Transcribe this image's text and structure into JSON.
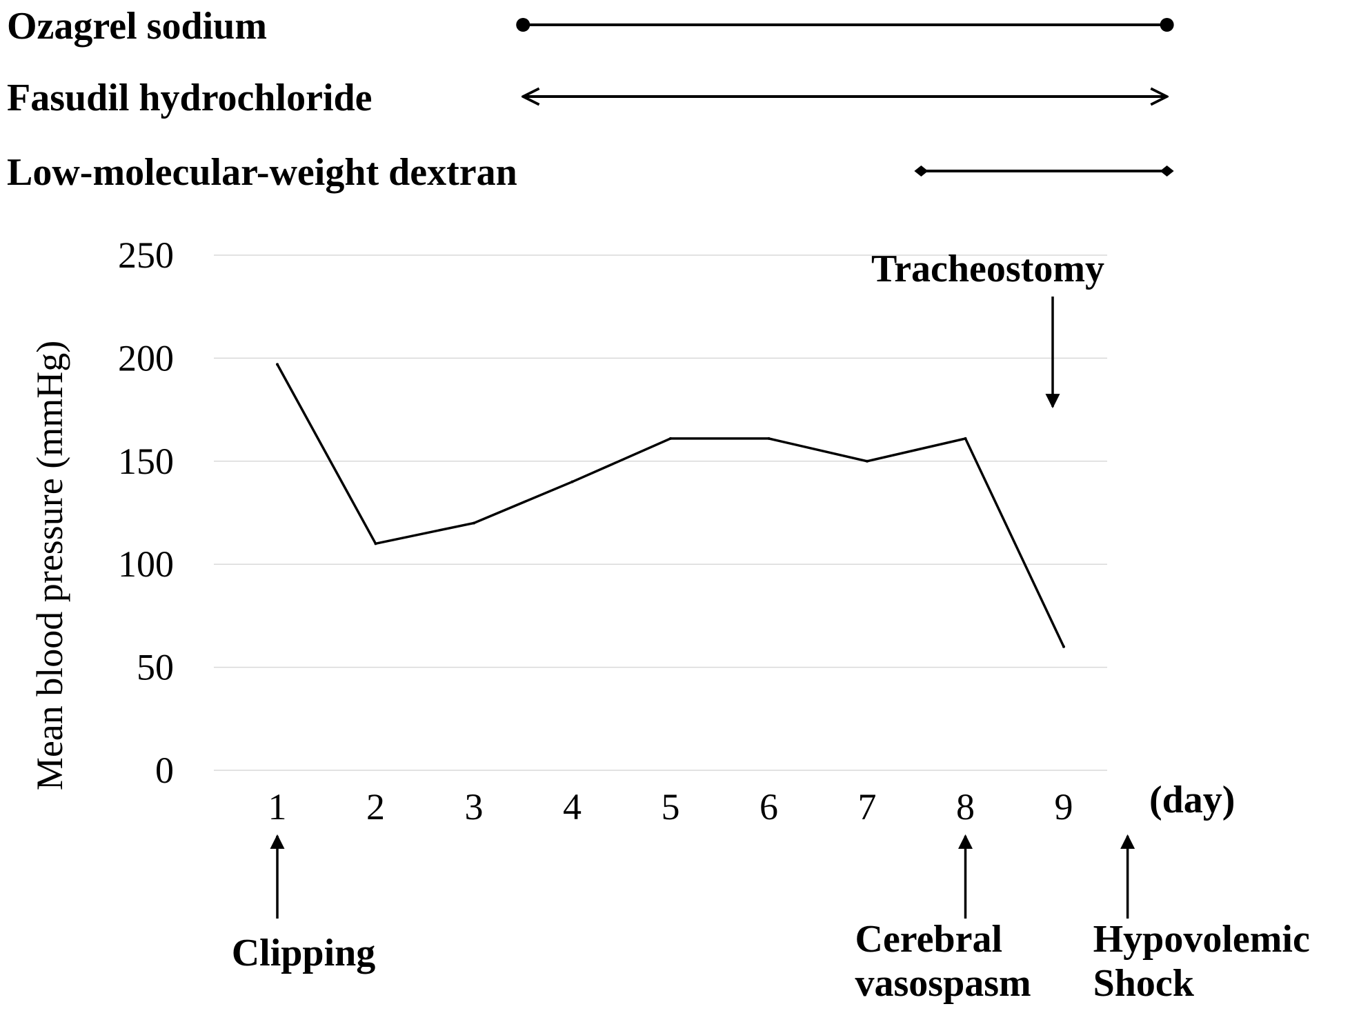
{
  "chart_data": {
    "type": "line",
    "title": "",
    "xlabel": "(day)",
    "ylabel": "Mean blood pressure (mmHg)",
    "x": [
      1,
      2,
      3,
      4,
      5,
      6,
      7,
      8,
      9
    ],
    "y_ticks": [
      "0",
      "50",
      "100",
      "150",
      "200",
      "250"
    ],
    "x_ticks": [
      "1",
      "2",
      "3",
      "4",
      "5",
      "6",
      "7",
      "8",
      "9"
    ],
    "ylim": [
      0,
      250
    ],
    "grid": true,
    "series": [
      {
        "values": [
          197,
          110,
          120,
          140,
          161,
          161,
          150,
          161,
          60
        ]
      }
    ],
    "treatments": [
      {
        "label": "Ozagrel sodium",
        "start_day": 3.5,
        "end_day": 10.05,
        "cap": "dot"
      },
      {
        "label": "Fasudil hydrochloride",
        "start_day": 3.5,
        "end_day": 10.05,
        "cap": "arrow"
      },
      {
        "label": "Low-molecular-weight dextran",
        "start_day": 7.55,
        "end_day": 10.05,
        "cap": "diamond"
      }
    ],
    "annotations": [
      {
        "label": "Clipping",
        "day": 1,
        "direction": "up"
      },
      {
        "label": "Cerebral vasospasm",
        "lines": [
          "Cerebral",
          "vasospasm"
        ],
        "day": 8,
        "direction": "up"
      },
      {
        "label": "Hypovolemic Shock",
        "lines": [
          "Hypovolemic",
          "Shock"
        ],
        "day": 9.65,
        "direction": "up"
      },
      {
        "label": "Tracheostomy",
        "day": 9,
        "direction": "down"
      }
    ],
    "colors": {
      "line": "#000000",
      "grid": "#d9d9d9",
      "background": "#ffffff"
    }
  }
}
